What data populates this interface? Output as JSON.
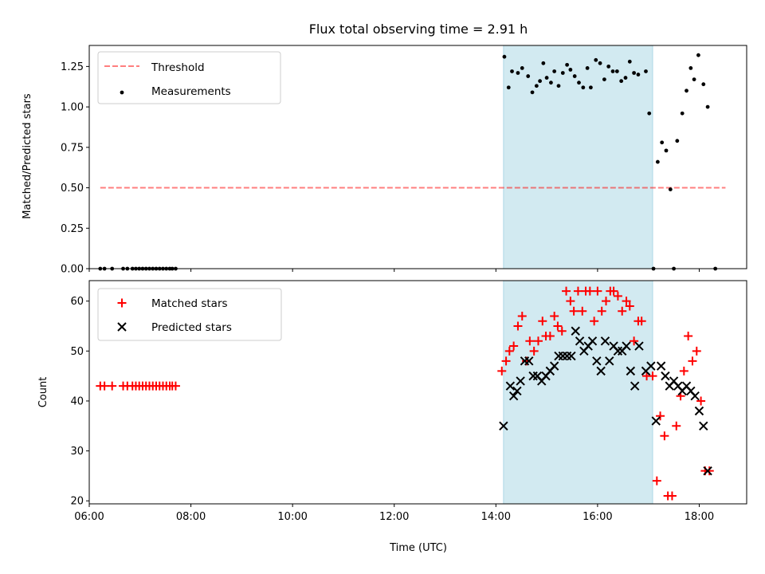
{
  "title": "Flux total observing time = 2.91 h",
  "colors": {
    "shade": "#add8e6",
    "threshold": "#ff0000",
    "matched": "#ff0000",
    "predicted": "#000000",
    "measurement": "#000000"
  },
  "chart_data": [
    {
      "type": "scatter",
      "ylabel": "Matched/Predicted stars",
      "xlim": [
        "06:00",
        "18:56"
      ],
      "ylim": [
        0,
        1.38
      ],
      "yticks": [
        "0.00",
        "0.25",
        "0.50",
        "0.75",
        "1.00",
        "1.25"
      ],
      "shaded_interval": [
        "14:09",
        "17:05"
      ],
      "legend_position": "top-left",
      "threshold": {
        "name": "Threshold",
        "value": 0.5,
        "x": [
          "06:13",
          "18:31"
        ]
      },
      "series": [
        {
          "name": "Measurements",
          "points": [
            [
              "06:13",
              0
            ],
            [
              "06:18",
              0
            ],
            [
              "06:27",
              0
            ],
            [
              "06:40",
              0
            ],
            [
              "06:45",
              0
            ],
            [
              "06:51",
              0
            ],
            [
              "06:55",
              0
            ],
            [
              "06:59",
              0
            ],
            [
              "07:03",
              0
            ],
            [
              "07:07",
              0
            ],
            [
              "07:11",
              0
            ],
            [
              "07:15",
              0
            ],
            [
              "07:19",
              0
            ],
            [
              "07:23",
              0
            ],
            [
              "07:27",
              0
            ],
            [
              "07:31",
              0
            ],
            [
              "07:35",
              0
            ],
            [
              "07:38",
              0
            ],
            [
              "07:42",
              0
            ],
            [
              "14:10",
              1.31
            ],
            [
              "14:15",
              1.12
            ],
            [
              "14:19",
              1.22
            ],
            [
              "14:26",
              1.21
            ],
            [
              "14:31",
              1.24
            ],
            [
              "14:38",
              1.19
            ],
            [
              "14:43",
              1.09
            ],
            [
              "14:48",
              1.13
            ],
            [
              "14:52",
              1.16
            ],
            [
              "14:56",
              1.27
            ],
            [
              "15:00",
              1.18
            ],
            [
              "15:05",
              1.15
            ],
            [
              "15:09",
              1.22
            ],
            [
              "15:14",
              1.13
            ],
            [
              "15:19",
              1.21
            ],
            [
              "15:24",
              1.26
            ],
            [
              "15:28",
              1.23
            ],
            [
              "15:33",
              1.19
            ],
            [
              "15:38",
              1.15
            ],
            [
              "15:43",
              1.12
            ],
            [
              "15:48",
              1.24
            ],
            [
              "15:52",
              1.12
            ],
            [
              "15:58",
              1.29
            ],
            [
              "16:03",
              1.27
            ],
            [
              "16:08",
              1.17
            ],
            [
              "16:13",
              1.25
            ],
            [
              "16:18",
              1.22
            ],
            [
              "16:23",
              1.22
            ],
            [
              "16:28",
              1.16
            ],
            [
              "16:33",
              1.18
            ],
            [
              "16:38",
              1.28
            ],
            [
              "16:43",
              1.21
            ],
            [
              "16:48",
              1.2
            ],
            [
              "16:57",
              1.22
            ],
            [
              "17:01",
              0.96
            ],
            [
              "17:06",
              0
            ],
            [
              "17:11",
              0.66
            ],
            [
              "17:16",
              0.78
            ],
            [
              "17:21",
              0.73
            ],
            [
              "17:26",
              0.49
            ],
            [
              "17:30",
              0
            ],
            [
              "17:34",
              0.79
            ],
            [
              "17:40",
              0.96
            ],
            [
              "17:45",
              1.1
            ],
            [
              "17:50",
              1.24
            ],
            [
              "17:54",
              1.17
            ],
            [
              "17:59",
              1.32
            ],
            [
              "18:05",
              1.14
            ],
            [
              "18:10",
              1.0
            ],
            [
              "18:19",
              0
            ]
          ]
        }
      ]
    },
    {
      "type": "scatter",
      "xlabel": "Time (UTC)",
      "ylabel": "Count",
      "xlim": [
        "06:00",
        "18:56"
      ],
      "ylim": [
        19.4,
        64.1
      ],
      "xticks": [
        "06:00",
        "08:00",
        "10:00",
        "12:00",
        "14:00",
        "16:00",
        "18:00"
      ],
      "yticks": [
        20,
        30,
        40,
        50,
        60
      ],
      "shaded_interval": [
        "14:09",
        "17:05"
      ],
      "legend_position": "top-left",
      "series": [
        {
          "name": "Matched stars",
          "marker": "plus",
          "points": [
            [
              "06:13",
              43
            ],
            [
              "06:18",
              43
            ],
            [
              "06:27",
              43
            ],
            [
              "06:40",
              43
            ],
            [
              "06:45",
              43
            ],
            [
              "06:51",
              43
            ],
            [
              "06:55",
              43
            ],
            [
              "06:59",
              43
            ],
            [
              "07:03",
              43
            ],
            [
              "07:07",
              43
            ],
            [
              "07:11",
              43
            ],
            [
              "07:15",
              43
            ],
            [
              "07:19",
              43
            ],
            [
              "07:23",
              43
            ],
            [
              "07:27",
              43
            ],
            [
              "07:31",
              43
            ],
            [
              "07:35",
              43
            ],
            [
              "07:38",
              43
            ],
            [
              "07:42",
              43
            ],
            [
              "14:07",
              46
            ],
            [
              "14:12",
              48
            ],
            [
              "14:16",
              50
            ],
            [
              "14:21",
              51
            ],
            [
              "14:26",
              55
            ],
            [
              "14:31",
              57
            ],
            [
              "14:36",
              48
            ],
            [
              "14:40",
              52
            ],
            [
              "14:45",
              50
            ],
            [
              "14:50",
              52
            ],
            [
              "14:55",
              56
            ],
            [
              "14:59",
              53
            ],
            [
              "15:04",
              53
            ],
            [
              "15:09",
              57
            ],
            [
              "15:13",
              55
            ],
            [
              "15:18",
              54
            ],
            [
              "15:23",
              62
            ],
            [
              "15:28",
              60
            ],
            [
              "15:32",
              58
            ],
            [
              "15:37",
              62
            ],
            [
              "15:42",
              58
            ],
            [
              "15:46",
              62
            ],
            [
              "15:51",
              62
            ],
            [
              "15:56",
              56
            ],
            [
              "16:00",
              62
            ],
            [
              "16:05",
              58
            ],
            [
              "16:10",
              60
            ],
            [
              "16:15",
              62
            ],
            [
              "16:19",
              62
            ],
            [
              "16:24",
              61
            ],
            [
              "16:29",
              58
            ],
            [
              "16:34",
              60
            ],
            [
              "16:38",
              59
            ],
            [
              "16:43",
              52
            ],
            [
              "16:48",
              56
            ],
            [
              "16:52",
              56
            ],
            [
              "16:58",
              45
            ],
            [
              "17:05",
              45
            ],
            [
              "17:10",
              24
            ],
            [
              "17:14",
              37
            ],
            [
              "17:19",
              33
            ],
            [
              "17:23",
              21
            ],
            [
              "17:28",
              21
            ],
            [
              "17:33",
              35
            ],
            [
              "17:38",
              41
            ],
            [
              "17:42",
              46
            ],
            [
              "17:47",
              53
            ],
            [
              "17:52",
              48
            ],
            [
              "17:57",
              50
            ],
            [
              "18:02",
              40
            ],
            [
              "18:07",
              26
            ],
            [
              "18:12",
              26
            ]
          ]
        },
        {
          "name": "Predicted stars",
          "marker": "x",
          "points": [
            [
              "14:09",
              35
            ],
            [
              "14:17",
              43
            ],
            [
              "14:21",
              41
            ],
            [
              "14:25",
              42
            ],
            [
              "14:29",
              44
            ],
            [
              "14:34",
              48
            ],
            [
              "14:39",
              48
            ],
            [
              "14:44",
              45
            ],
            [
              "14:49",
              45
            ],
            [
              "14:54",
              44
            ],
            [
              "14:59",
              45
            ],
            [
              "15:04",
              46
            ],
            [
              "15:09",
              47
            ],
            [
              "15:14",
              49
            ],
            [
              "15:19",
              49
            ],
            [
              "15:24",
              49
            ],
            [
              "15:29",
              49
            ],
            [
              "15:34",
              54
            ],
            [
              "15:39",
              52
            ],
            [
              "15:44",
              50
            ],
            [
              "15:49",
              51
            ],
            [
              "15:54",
              52
            ],
            [
              "15:59",
              48
            ],
            [
              "16:04",
              46
            ],
            [
              "16:09",
              52
            ],
            [
              "16:14",
              48
            ],
            [
              "16:19",
              51
            ],
            [
              "16:24",
              50
            ],
            [
              "16:29",
              50
            ],
            [
              "16:34",
              51
            ],
            [
              "16:39",
              46
            ],
            [
              "16:44",
              43
            ],
            [
              "16:49",
              51
            ],
            [
              "16:57",
              46
            ],
            [
              "17:03",
              47
            ],
            [
              "17:09",
              36
            ],
            [
              "17:15",
              47
            ],
            [
              "17:20",
              45
            ],
            [
              "17:25",
              43
            ],
            [
              "17:30",
              44
            ],
            [
              "17:35",
              43
            ],
            [
              "17:40",
              42
            ],
            [
              "17:45",
              43
            ],
            [
              "17:50",
              42
            ],
            [
              "17:55",
              41
            ],
            [
              "18:00",
              38
            ],
            [
              "18:05",
              35
            ],
            [
              "18:10",
              26
            ]
          ]
        }
      ]
    }
  ]
}
